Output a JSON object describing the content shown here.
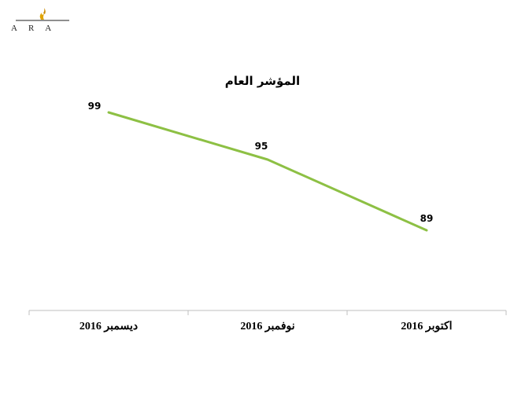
{
  "logo": {
    "text": "ARA",
    "icon": "flame-icon",
    "accent": "#e0a400"
  },
  "chart_data": {
    "type": "line",
    "title": "المؤشر العام",
    "xlabel": "",
    "ylabel": "",
    "categories": [
      "ديسمبر  2016",
      "نوفمبر  2016",
      "اكتوبر  2016"
    ],
    "series": [
      {
        "values": [
          99,
          95,
          89
        ],
        "color": "#8dc044"
      }
    ],
    "ylim": [
      80,
      100
    ],
    "grid": false,
    "legend": "none",
    "data_labels": true
  }
}
